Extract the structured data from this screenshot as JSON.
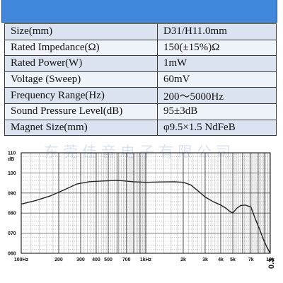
{
  "header": {
    "color": "#4187dc"
  },
  "specs": [
    {
      "label": "Size(mm)",
      "value": "D31/H11.0mm"
    },
    {
      "label": "Rated Impedance(Ω)",
      "value": "150(±15%)Ω"
    },
    {
      "label": "Rated Power(W)",
      "value": "1mW"
    },
    {
      "label": "Voltage (Sweep)",
      "value": "60mV"
    },
    {
      "label": "Frequency Range(Hz)",
      "value": "200～5000Hz"
    },
    {
      "label": "Sound Pressure Level(dB)",
      "value": "95±3dB"
    },
    {
      "label": "Magnet Size(mm)",
      "value": "φ9.5×1.5 NdFeB"
    }
  ],
  "watermark": "东莞佳音电子有限公司",
  "corner_text": "0.3",
  "chart_data": {
    "type": "line",
    "xscale": "log",
    "xlim": [
      100,
      10000
    ],
    "ylim": [
      60,
      110
    ],
    "ylabel_unit": "dB",
    "ytick_labels": [
      {
        "v": 110,
        "t": "110"
      },
      {
        "v": 100,
        "t": "100"
      },
      {
        "v": 90,
        "t": "090"
      },
      {
        "v": 80,
        "t": "080"
      },
      {
        "v": 70,
        "t": "070"
      },
      {
        "v": 60,
        "t": "060"
      }
    ],
    "xtick_labels": [
      {
        "v": 100,
        "t": "100Hz"
      },
      {
        "v": 200,
        "t": "200"
      },
      {
        "v": 300,
        "t": "300"
      },
      {
        "v": 400,
        "t": "400"
      },
      {
        "v": 500,
        "t": "500"
      },
      {
        "v": 700,
        "t": "700"
      },
      {
        "v": 1000,
        "t": "1kHz"
      },
      {
        "v": 2000,
        "t": "2k"
      },
      {
        "v": 3000,
        "t": "3k"
      },
      {
        "v": 4000,
        "t": "4k"
      },
      {
        "v": 5000,
        "t": "5k"
      },
      {
        "v": 7000,
        "t": "7k"
      },
      {
        "v": 10000,
        "t": "10k"
      }
    ],
    "series": [
      {
        "x": [
          100,
          130,
          170,
          220,
          280,
          350,
          450,
          600,
          800,
          1000,
          1300,
          1700,
          2000,
          2300,
          2700,
          3000,
          3500,
          4000,
          4400,
          4700,
          5000,
          5400,
          5800,
          6300,
          7000,
          7600,
          8200,
          8800,
          9400,
          10000
        ],
        "y": [
          84.5,
          86.2,
          88.5,
          91.5,
          94.5,
          95.6,
          96.0,
          96.3,
          95.6,
          95.3,
          95.5,
          95.6,
          95.3,
          94.0,
          90.5,
          88.0,
          85.6,
          84.0,
          82.5,
          81.0,
          80.0,
          82.5,
          83.8,
          84.0,
          83.0,
          77.0,
          72.0,
          67.0,
          63.0,
          60.0
        ]
      }
    ]
  }
}
